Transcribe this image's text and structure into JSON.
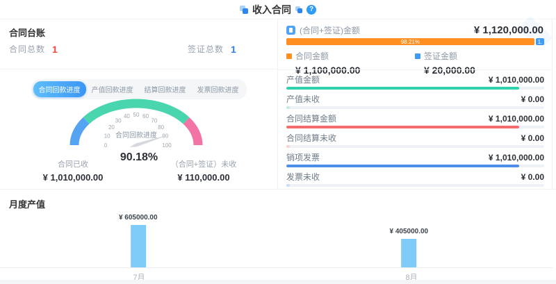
{
  "header": {
    "title": "收入合同",
    "help_glyph": "?"
  },
  "ledger": {
    "title": "合同台账",
    "stats": [
      {
        "label": "合同总数",
        "value": "1",
        "color": "#F5483C"
      },
      {
        "label": "签证总数",
        "value": "1",
        "color": "#2B7CF7"
      }
    ]
  },
  "progress_tabs": [
    {
      "label": "合同回款进度",
      "active": true
    },
    {
      "label": "产值回款进度",
      "active": false
    },
    {
      "label": "结算回款进度",
      "active": false
    },
    {
      "label": "发票回款进度",
      "active": false
    }
  ],
  "gauge_footer": {
    "received_label": "合同已收",
    "received_value": "¥ 1,010,000.00",
    "unreceived_label": "（合同+签证）未收",
    "unreceived_value": "¥ 110,000.00"
  },
  "amount_panel": {
    "title": "(合同+签证)金额",
    "total": "¥ 1,120,000.00",
    "split_bar": {
      "primary_pct": 96.4,
      "primary_label": "98.21%",
      "primary_color": "#FF8F1F",
      "secondary_pct": 3.3,
      "secondary_label": "1.",
      "secondary_color": "#3E9BF7"
    },
    "legend": [
      {
        "label": "合同金额",
        "value": "¥ 1,100,000.00",
        "color": "#FF8F1F"
      },
      {
        "label": "签证金额",
        "value": "¥ 20,000.00",
        "color": "#3E9BF7"
      }
    ],
    "rows": [
      {
        "label": "产值金额",
        "value": "¥ 1,010,000.00",
        "pct": 90.18,
        "color": "#2DD3AE"
      },
      {
        "label": "产值未收",
        "value": "¥ 0.00",
        "pct": 1.4,
        "color": "#BEEDE3"
      },
      {
        "label": "合同结算金额",
        "value": "¥ 1,010,000.00",
        "pct": 90.18,
        "color": "#F56C6C"
      },
      {
        "label": "合同结算未收",
        "value": "¥ 0.00",
        "pct": 1.4,
        "color": "#F9D2D2"
      },
      {
        "label": "销项发票",
        "value": "¥ 1,010,000.00",
        "pct": 90.18,
        "color": "#4C8EE8"
      },
      {
        "label": "发票未收",
        "value": "¥ 0.00",
        "pct": 1.4,
        "color": "#C9DDF8"
      }
    ]
  },
  "monthly_section": {
    "title": "月度产值"
  },
  "chart_data": [
    {
      "type": "gauge",
      "title": "合同回款进度",
      "value": 90.18,
      "value_label": "90.18%",
      "min": 0,
      "max": 100,
      "tick_step": 10,
      "segments": [
        {
          "from": 0,
          "to": 20,
          "color": "#55A3F3"
        },
        {
          "from": 20,
          "to": 80,
          "color": "#49D6AE"
        },
        {
          "from": 80,
          "to": 100,
          "color": "#F273A5"
        }
      ],
      "needle_color": "#D5D9DF"
    },
    {
      "type": "bar",
      "title": "月度产值",
      "categories": [
        "7月",
        "8月"
      ],
      "values": [
        605000,
        405000
      ],
      "value_labels": [
        "¥ 605000.00",
        "¥ 405000.00"
      ],
      "bar_color": "#7ECBF7",
      "ylim": [
        0,
        650000
      ],
      "centers_pct": [
        25,
        74
      ],
      "xlabel": "",
      "ylabel": ""
    }
  ]
}
